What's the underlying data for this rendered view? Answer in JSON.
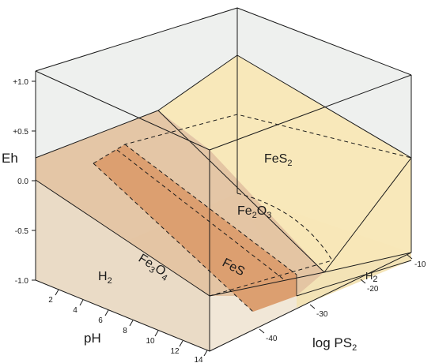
{
  "axes": {
    "eh": {
      "label": "Eh",
      "ticks": [
        "+1.0",
        "+0.5",
        "0.0",
        "-0.5",
        "-1.0"
      ]
    },
    "ph": {
      "label": "pH",
      "ticks": [
        "2",
        "4",
        "6",
        "8",
        "10",
        "12",
        "14"
      ]
    },
    "log_ps2": {
      "label_main": "log PS",
      "label_sub": "2",
      "ticks": [
        "-40",
        "-30",
        "-20",
        "-10"
      ]
    }
  },
  "regions": {
    "fes2": {
      "main": "FeS",
      "sub": "2"
    },
    "fe2o3": {
      "a": "Fe",
      "a_sub": "2",
      "b": "O",
      "b_sub": "3"
    },
    "fes": {
      "label": "FeS"
    },
    "fe3o4": {
      "a": "Fe",
      "a_sub": "3",
      "b": "O",
      "b_sub": "4"
    },
    "h2_left": {
      "main": "H",
      "sub": "2"
    },
    "h2_right": {
      "main": "H",
      "sub": "2"
    }
  },
  "colors": {
    "fes2_yellow": "#f8e7b6",
    "fe2o3_tan": "#e3c3a1",
    "fes_orange": "#dc9f70",
    "floor": "#f0e6d6",
    "walls": "#eef0ee"
  }
}
